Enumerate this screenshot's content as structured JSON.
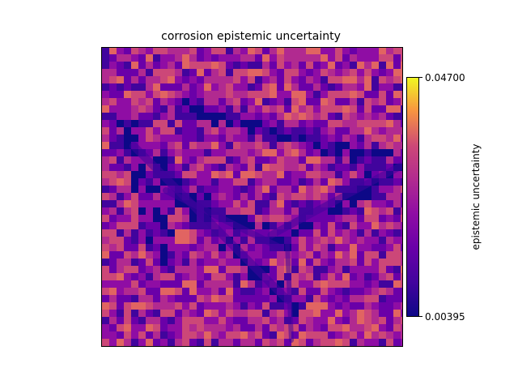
{
  "chart_data": {
    "type": "heatmap",
    "title": "corrosion epistemic uncertainty",
    "colormap": "plasma",
    "colorbar": {
      "label": "epistemic uncertainty",
      "min": 0.00395,
      "max": 0.047,
      "ticks": [
        {
          "value": 0.047,
          "label": "0.04700"
        },
        {
          "value": 0.00395,
          "label": "0.00395"
        }
      ]
    },
    "axes_ticks_visible": false,
    "grid": false,
    "description_of_pattern": "per-pixel uncertainty over an aerial image: lower values (dark purple) along diagonal linear structures and edges, higher values (orange/yellow) in textured background"
  }
}
